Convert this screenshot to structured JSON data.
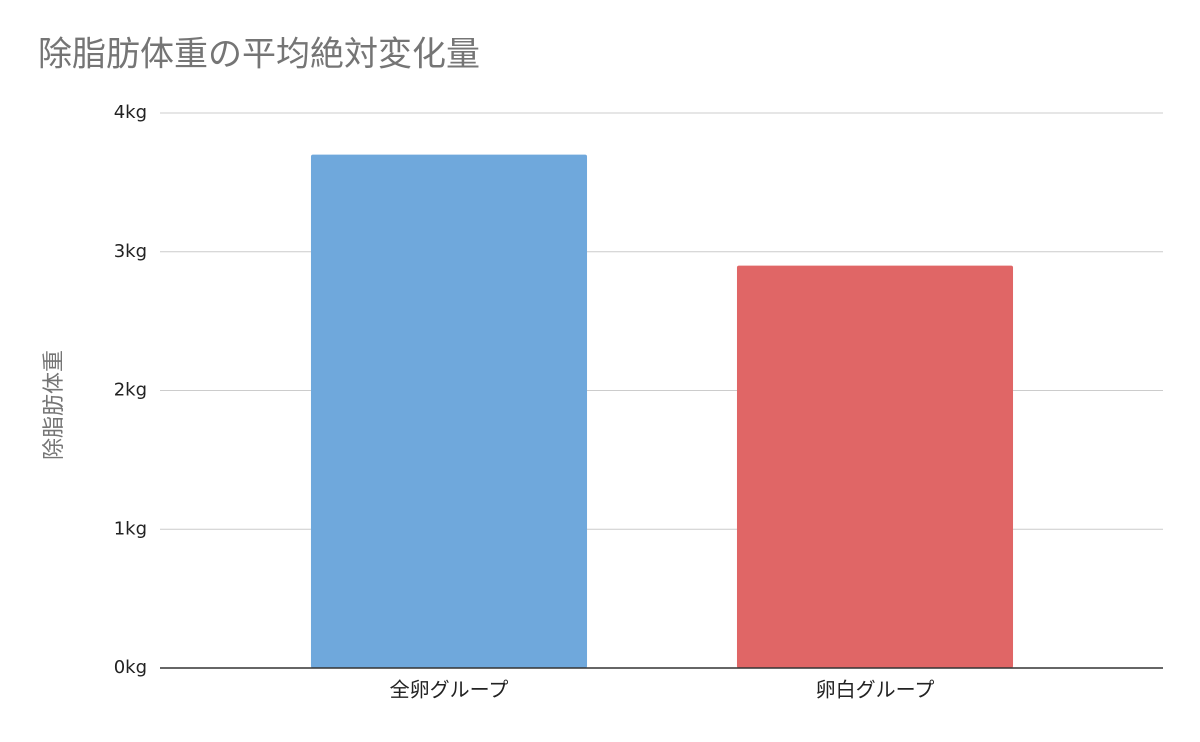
{
  "chart_data": {
    "type": "bar",
    "title": "除脂肪体重の平均絶対変化量",
    "y_label": "除脂肪体重",
    "categories": [
      "全卵グループ",
      "卵白グループ"
    ],
    "values": [
      3.7,
      2.9
    ],
    "colors": [
      "#6fa8dc",
      "#e06666"
    ],
    "ylim": [
      0,
      4
    ],
    "yticks": [
      {
        "value": 0,
        "label": "0kg"
      },
      {
        "value": 1,
        "label": "1kg"
      },
      {
        "value": 2,
        "label": "2kg"
      },
      {
        "value": 3,
        "label": "3kg"
      },
      {
        "value": 4,
        "label": "4kg"
      }
    ],
    "grid": true
  }
}
